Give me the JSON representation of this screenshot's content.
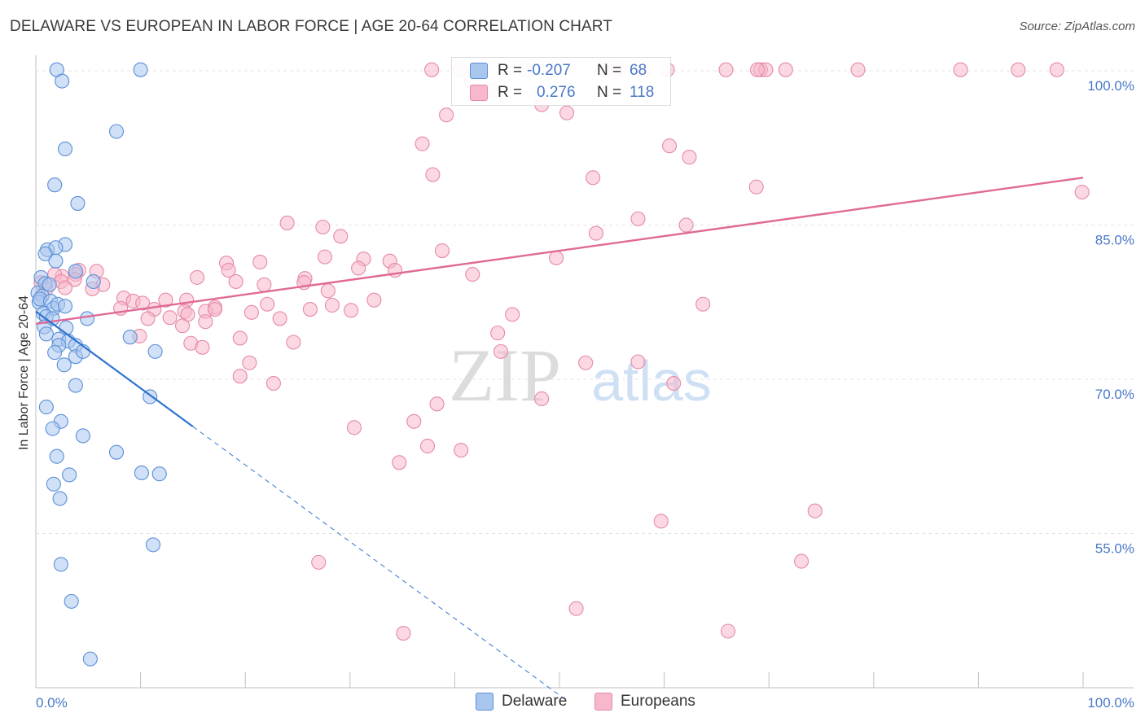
{
  "title": "DELAWARE VS EUROPEAN IN LABOR FORCE | AGE 20-64 CORRELATION CHART",
  "source": "Source: ZipAtlas.com",
  "watermark": {
    "zip": "ZIP",
    "atlas": "atlas"
  },
  "legend": {
    "rows": [
      {
        "r_label": "R =",
        "r_value": "-0.207",
        "n_label": "N =",
        "n_value": "68"
      },
      {
        "r_label": "R =",
        "r_value": "0.276",
        "n_label": "N =",
        "n_value": "118"
      }
    ]
  },
  "bottom_legend": {
    "delaware": "Delaware",
    "europeans": "Europeans"
  },
  "colors": {
    "delaware_fill": "#a9c6ee",
    "delaware_stroke": "#5b8fd9",
    "delaware_line": "#2f74d0",
    "europeans_fill": "#f7b8cb",
    "europeans_stroke": "#e58aa8",
    "europeans_line": "#e06a95",
    "axis_text": "#4a78c8",
    "grid": "#e3e3e3"
  },
  "chart_data": {
    "type": "scatter",
    "title": "DELAWARE VS EUROPEAN IN LABOR FORCE | AGE 20-64 CORRELATION CHART",
    "xlabel": "",
    "ylabel": "In Labor Force | Age 20-64",
    "xlim": [
      0,
      100
    ],
    "ylim": [
      40,
      101.5
    ],
    "x_tick_labels": [
      "0.0%",
      "100.0%"
    ],
    "y_ticks": [
      55,
      70,
      85,
      100
    ],
    "y_tick_labels": [
      "55.0%",
      "70.0%",
      "85.0%",
      "100.0%"
    ],
    "series": [
      {
        "name": "Delaware",
        "r": -0.207,
        "n": 68,
        "trend": {
          "solid": [
            [
              0,
              76.6
            ],
            [
              15,
              65.4
            ]
          ],
          "dashed": [
            [
              15,
              65.4
            ],
            [
              50.5,
              38.9
            ]
          ]
        },
        "points": [
          [
            2,
            100.1
          ],
          [
            10,
            100.1
          ],
          [
            2.5,
            99
          ],
          [
            7.7,
            94.1
          ],
          [
            2.8,
            92.4
          ],
          [
            1.8,
            88.9
          ],
          [
            4,
            87.1
          ],
          [
            2.8,
            83.1
          ],
          [
            1.1,
            82.6
          ],
          [
            1.9,
            82.8
          ],
          [
            0.9,
            82.2
          ],
          [
            1.9,
            81.5
          ],
          [
            0.5,
            79.9
          ],
          [
            0.9,
            79.3
          ],
          [
            3.8,
            80.5
          ],
          [
            5.5,
            79.5
          ],
          [
            1.3,
            79.2
          ],
          [
            0.2,
            78.4
          ],
          [
            0.6,
            78.1
          ],
          [
            0.3,
            77.5
          ],
          [
            0.4,
            77.8
          ],
          [
            1.4,
            77.6
          ],
          [
            1.7,
            76.9
          ],
          [
            2.1,
            77.3
          ],
          [
            2.8,
            77.1
          ],
          [
            0.7,
            76.4
          ],
          [
            1,
            76.1
          ],
          [
            1.6,
            75.9
          ],
          [
            4.9,
            75.9
          ],
          [
            0.8,
            75.1
          ],
          [
            2.9,
            75
          ],
          [
            1,
            74.4
          ],
          [
            2.2,
            73.9
          ],
          [
            3.1,
            73.7
          ],
          [
            2.2,
            73.3
          ],
          [
            3.8,
            73.3
          ],
          [
            9,
            74.1
          ],
          [
            1.8,
            72.6
          ],
          [
            3.8,
            72.2
          ],
          [
            4.5,
            72.7
          ],
          [
            11.4,
            72.7
          ],
          [
            2.7,
            71.4
          ],
          [
            3.8,
            69.4
          ],
          [
            10.9,
            68.3
          ],
          [
            1,
            67.3
          ],
          [
            2.4,
            65.9
          ],
          [
            1.6,
            65.2
          ],
          [
            4.5,
            64.5
          ],
          [
            7.7,
            62.9
          ],
          [
            2,
            62.5
          ],
          [
            3.2,
            60.7
          ],
          [
            10.1,
            60.9
          ],
          [
            11.8,
            60.8
          ],
          [
            1.7,
            59.8
          ],
          [
            2.3,
            58.4
          ],
          [
            11.2,
            53.9
          ],
          [
            2.4,
            52
          ],
          [
            3.4,
            48.4
          ],
          [
            5.2,
            42.8
          ]
        ]
      },
      {
        "name": "Europeans",
        "r": 0.276,
        "n": 118,
        "trend": {
          "solid": [
            [
              0,
              75.4
            ],
            [
              100,
              89.6
            ]
          ]
        },
        "points": [
          [
            41.9,
            100.1
          ],
          [
            49.5,
            100.1
          ],
          [
            58.1,
            100.1
          ],
          [
            69.2,
            100.1
          ],
          [
            71.6,
            100.1
          ],
          [
            69.7,
            100.1
          ],
          [
            78.5,
            100.1
          ],
          [
            93.8,
            100.1
          ],
          [
            97.5,
            100.1
          ],
          [
            65.9,
            100.1
          ],
          [
            60.3,
            100.1
          ],
          [
            68.9,
            100.1
          ],
          [
            88.3,
            100.1
          ],
          [
            55.6,
            100.1
          ],
          [
            54.4,
            100.1
          ],
          [
            46.7,
            100.1
          ],
          [
            40.5,
            100.1
          ],
          [
            37.8,
            100.1
          ],
          [
            41.6,
            99
          ],
          [
            43.5,
            98.1
          ],
          [
            48.3,
            96.7
          ],
          [
            39.2,
            95.7
          ],
          [
            50.7,
            95.9
          ],
          [
            36.9,
            92.9
          ],
          [
            60.5,
            92.7
          ],
          [
            62.4,
            91.6
          ],
          [
            37.9,
            89.9
          ],
          [
            53.2,
            89.6
          ],
          [
            68.8,
            88.7
          ],
          [
            99.9,
            88.2
          ],
          [
            57.5,
            85.6
          ],
          [
            24,
            85.2
          ],
          [
            27.4,
            84.8
          ],
          [
            62.1,
            85
          ],
          [
            53.5,
            84.2
          ],
          [
            29.1,
            83.9
          ],
          [
            38.8,
            82.5
          ],
          [
            21.4,
            81.4
          ],
          [
            27.6,
            81.9
          ],
          [
            31.3,
            81.7
          ],
          [
            33.8,
            81.5
          ],
          [
            49.7,
            81.8
          ],
          [
            18.2,
            81.3
          ],
          [
            18.4,
            80.6
          ],
          [
            30.8,
            80.8
          ],
          [
            34.3,
            80.6
          ],
          [
            41.7,
            80.2
          ],
          [
            5.8,
            80.5
          ],
          [
            4.1,
            80.6
          ],
          [
            3.8,
            80.2
          ],
          [
            2.5,
            80
          ],
          [
            1.8,
            80.2
          ],
          [
            3.7,
            79.7
          ],
          [
            15.4,
            79.9
          ],
          [
            25.7,
            79.8
          ],
          [
            19.1,
            79.5
          ],
          [
            21.8,
            79.2
          ],
          [
            25.6,
            79.4
          ],
          [
            2.4,
            79.5
          ],
          [
            0.5,
            79.4
          ],
          [
            2.8,
            78.9
          ],
          [
            6.4,
            79.2
          ],
          [
            5.4,
            78.8
          ],
          [
            1,
            78.8
          ],
          [
            27.9,
            78.6
          ],
          [
            8.4,
            77.9
          ],
          [
            9.3,
            77.6
          ],
          [
            10.2,
            77.4
          ],
          [
            12.4,
            77.7
          ],
          [
            14.4,
            77.7
          ],
          [
            17.1,
            77
          ],
          [
            22.1,
            77.3
          ],
          [
            28.3,
            77.2
          ],
          [
            32.3,
            77.7
          ],
          [
            8.1,
            76.9
          ],
          [
            11.3,
            76.8
          ],
          [
            14.2,
            76.6
          ],
          [
            16.2,
            76.6
          ],
          [
            17.1,
            76.8
          ],
          [
            20.6,
            76.5
          ],
          [
            26.2,
            76.8
          ],
          [
            30.1,
            76.7
          ],
          [
            63.7,
            77.3
          ],
          [
            14.5,
            76.3
          ],
          [
            12.8,
            76
          ],
          [
            10.7,
            75.9
          ],
          [
            16.2,
            75.6
          ],
          [
            23.3,
            75.9
          ],
          [
            45.5,
            76.3
          ],
          [
            14,
            75.2
          ],
          [
            44.1,
            74.5
          ],
          [
            9.9,
            74.2
          ],
          [
            19.5,
            74
          ],
          [
            24.6,
            73.6
          ],
          [
            14.8,
            73.5
          ],
          [
            15.9,
            73.1
          ],
          [
            44.4,
            72.7
          ],
          [
            20.4,
            71.6
          ],
          [
            52.5,
            71.6
          ],
          [
            57.5,
            71.7
          ],
          [
            19.5,
            70.3
          ],
          [
            22.7,
            69.6
          ],
          [
            60.9,
            69.6
          ],
          [
            38.3,
            67.6
          ],
          [
            48.3,
            68.1
          ],
          [
            36.1,
            65.9
          ],
          [
            30.4,
            65.3
          ],
          [
            37.4,
            63.5
          ],
          [
            40.6,
            63.1
          ],
          [
            34.7,
            61.9
          ],
          [
            59.7,
            56.2
          ],
          [
            74.4,
            57.2
          ],
          [
            27,
            52.2
          ],
          [
            73.1,
            52.3
          ],
          [
            51.6,
            47.7
          ],
          [
            35.1,
            45.3
          ],
          [
            66.1,
            45.5
          ]
        ]
      }
    ]
  }
}
